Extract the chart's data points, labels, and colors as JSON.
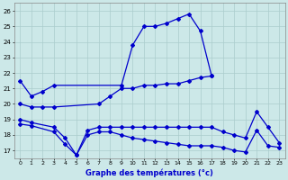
{
  "xlabel": "Graphe des températures (°c)",
  "x_ticks": [
    0,
    1,
    2,
    3,
    4,
    5,
    6,
    7,
    8,
    9,
    10,
    11,
    12,
    13,
    14,
    15,
    16,
    17,
    18,
    19,
    20,
    21,
    22,
    23
  ],
  "ylim": [
    16.5,
    26.5
  ],
  "xlim": [
    -0.5,
    23.5
  ],
  "yticks": [
    17,
    18,
    19,
    20,
    21,
    22,
    23,
    24,
    25,
    26
  ],
  "bg_color": "#cce8e8",
  "line_color": "#0000cc",
  "grid_color": "#aacccc",
  "line1_x": [
    0,
    1,
    2,
    3,
    9,
    10,
    11,
    12,
    13,
    14,
    15,
    16,
    17
  ],
  "line1_y": [
    21.5,
    20.5,
    20.8,
    21.2,
    21.2,
    23.8,
    25.0,
    25.0,
    25.2,
    25.5,
    25.8,
    24.7,
    21.8
  ],
  "line2_x": [
    0,
    1,
    2,
    3,
    7,
    8,
    9,
    10,
    11,
    12,
    13,
    14,
    15,
    16,
    17
  ],
  "line2_y": [
    20.0,
    19.8,
    19.8,
    19.8,
    20.0,
    20.5,
    21.0,
    21.0,
    21.2,
    21.2,
    21.3,
    21.3,
    21.5,
    21.7,
    21.8
  ],
  "line3_x": [
    0,
    1,
    3,
    4,
    5,
    6,
    7,
    8,
    9,
    10,
    11,
    12,
    13,
    14,
    15,
    16,
    17,
    18,
    19,
    20,
    21,
    22,
    23
  ],
  "line3_y": [
    19.0,
    18.8,
    18.5,
    17.8,
    16.7,
    18.3,
    18.5,
    18.5,
    18.5,
    18.5,
    18.5,
    18.5,
    18.5,
    18.5,
    18.5,
    18.5,
    18.5,
    18.2,
    18.0,
    17.8,
    19.5,
    18.5,
    17.5
  ],
  "line4_x": [
    0,
    1,
    3,
    4,
    5,
    6,
    7,
    8,
    9,
    10,
    11,
    12,
    13,
    14,
    15,
    16,
    17,
    18,
    19,
    20,
    21,
    22,
    23
  ],
  "line4_y": [
    18.7,
    18.6,
    18.2,
    17.4,
    16.7,
    18.0,
    18.2,
    18.2,
    18.0,
    17.8,
    17.7,
    17.6,
    17.5,
    17.4,
    17.3,
    17.3,
    17.3,
    17.2,
    17.0,
    16.9,
    18.3,
    17.3,
    17.2
  ]
}
